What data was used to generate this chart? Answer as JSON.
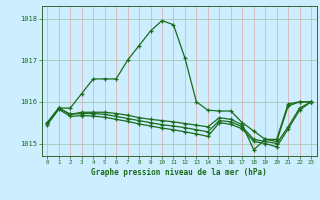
{
  "title": "Graphe pression niveau de la mer (hPa)",
  "background_color": "#cceeff",
  "grid_color_h": "#aaccbb",
  "grid_color_v": "#ddaaaa",
  "line_color": "#1a6b1a",
  "marker": "+",
  "xlim": [
    -0.5,
    23.5
  ],
  "ylim": [
    1014.7,
    1018.3
  ],
  "yticks": [
    1015,
    1016,
    1017,
    1018
  ],
  "xticks": [
    0,
    1,
    2,
    3,
    4,
    5,
    6,
    7,
    8,
    9,
    10,
    11,
    12,
    13,
    14,
    15,
    16,
    17,
    18,
    19,
    20,
    21,
    22,
    23
  ],
  "series": [
    [
      1015.5,
      1015.85,
      1015.85,
      1016.2,
      1016.55,
      1016.55,
      1016.55,
      1017.0,
      1017.35,
      1017.7,
      1017.95,
      1017.85,
      1017.05,
      1016.0,
      1015.8,
      1015.78,
      1015.78,
      1015.5,
      1015.3,
      1015.1,
      1015.1,
      1015.95,
      1016.0,
      1016.0
    ],
    [
      1015.5,
      1015.85,
      1015.7,
      1015.75,
      1015.75,
      1015.75,
      1015.72,
      1015.68,
      1015.62,
      1015.58,
      1015.55,
      1015.52,
      1015.48,
      1015.44,
      1015.4,
      1015.62,
      1015.58,
      1015.45,
      1014.85,
      1015.1,
      1015.05,
      1015.9,
      1016.0,
      1016.0
    ],
    [
      1015.5,
      1015.85,
      1015.7,
      1015.72,
      1015.72,
      1015.7,
      1015.65,
      1015.6,
      1015.55,
      1015.5,
      1015.45,
      1015.42,
      1015.38,
      1015.33,
      1015.28,
      1015.55,
      1015.52,
      1015.4,
      1015.1,
      1015.05,
      1015.0,
      1015.4,
      1015.85,
      1016.0
    ],
    [
      1015.45,
      1015.82,
      1015.65,
      1015.67,
      1015.66,
      1015.63,
      1015.58,
      1015.53,
      1015.47,
      1015.42,
      1015.37,
      1015.33,
      1015.28,
      1015.23,
      1015.17,
      1015.5,
      1015.46,
      1015.35,
      1015.05,
      1015.0,
      1014.92,
      1015.35,
      1015.8,
      1016.0
    ]
  ]
}
